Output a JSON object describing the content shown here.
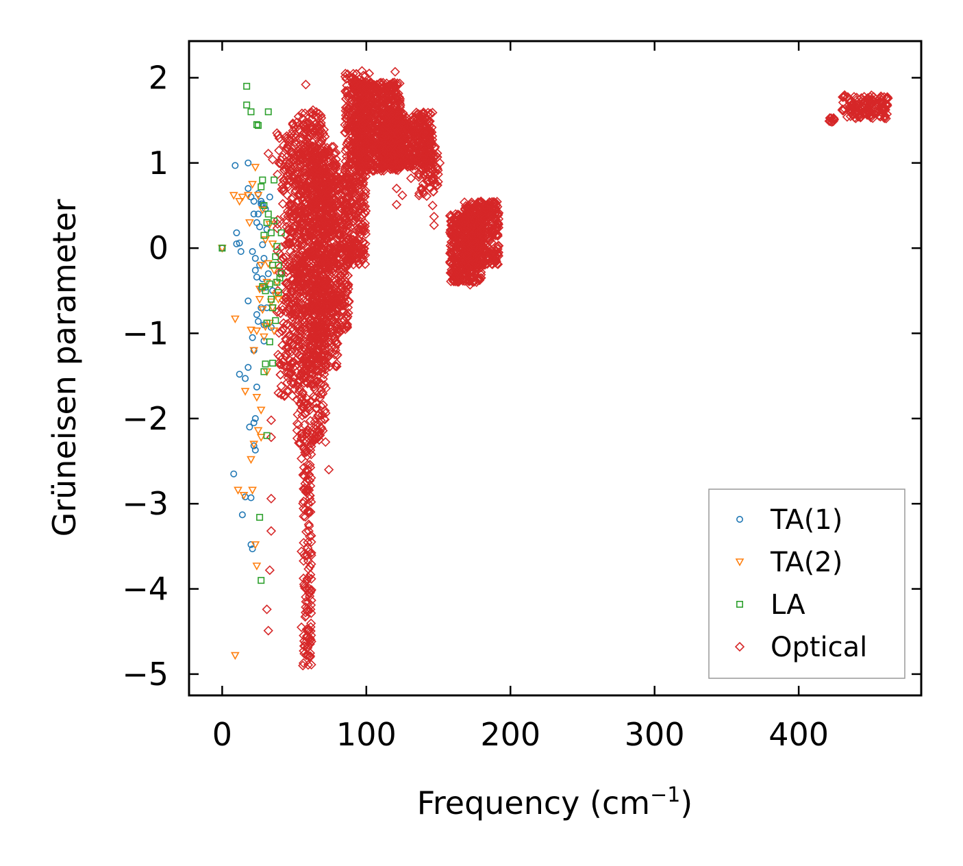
{
  "chart_data": {
    "type": "scatter",
    "title": "",
    "xlabel": "Frequency (cm",
    "xlabel_sup": "−1",
    "xlabel_suffix": ")",
    "ylabel": "Grüneisen parameter",
    "xlim": [
      -23,
      485
    ],
    "ylim": [
      -5.25,
      2.43
    ],
    "x_ticks": [
      0,
      100,
      200,
      300,
      400
    ],
    "x_tick_labels": [
      "0",
      "100",
      "200",
      "300",
      "400"
    ],
    "y_ticks": [
      -5,
      -4,
      -3,
      -2,
      -1,
      0,
      1,
      2
    ],
    "y_tick_labels": [
      "−5",
      "−4",
      "−3",
      "−2",
      "−1",
      "0",
      "1",
      "2"
    ],
    "grid": false,
    "legend_position": "lower-right",
    "series": [
      {
        "name": "TA(1)",
        "marker": "circle",
        "color": "#1f77b4",
        "points": [
          [
            0,
            0
          ],
          [
            8,
            -2.65
          ],
          [
            9,
            0.97
          ],
          [
            10,
            0.18
          ],
          [
            10,
            0.05
          ],
          [
            12,
            -1.48
          ],
          [
            12,
            0.06
          ],
          [
            13,
            -0.04
          ],
          [
            14,
            -3.13
          ],
          [
            16,
            -1.53
          ],
          [
            16,
            -2.92
          ],
          [
            18,
            -0.62
          ],
          [
            18,
            -1.4
          ],
          [
            18,
            0.7
          ],
          [
            18,
            1.0
          ],
          [
            19,
            -2.1
          ],
          [
            20,
            -2.93
          ],
          [
            20,
            -3.48
          ],
          [
            20,
            0.6
          ],
          [
            21,
            -3.53
          ],
          [
            21,
            -1.05
          ],
          [
            21,
            -0.04
          ],
          [
            22,
            -2.05
          ],
          [
            22,
            -2.32
          ],
          [
            22,
            -1.2
          ],
          [
            22,
            0.4
          ],
          [
            22,
            0.55
          ],
          [
            23,
            -2.0
          ],
          [
            23,
            -2.37
          ],
          [
            23,
            -0.12
          ],
          [
            23,
            -0.26
          ],
          [
            24,
            -1.63
          ],
          [
            24,
            -0.78
          ],
          [
            24,
            -0.34
          ],
          [
            24,
            0.3
          ],
          [
            25,
            -0.86
          ],
          [
            25,
            0.64
          ],
          [
            25,
            0.4
          ],
          [
            26,
            -0.2
          ],
          [
            26,
            0.25
          ],
          [
            27,
            -0.47
          ],
          [
            27,
            -0.7
          ],
          [
            27,
            0.52
          ],
          [
            27,
            0.55
          ],
          [
            28,
            -0.36
          ],
          [
            28,
            0.04
          ],
          [
            28,
            0.52
          ],
          [
            29,
            -1.09
          ],
          [
            29,
            -0.9
          ],
          [
            29,
            -0.12
          ],
          [
            30,
            0.46
          ],
          [
            30,
            -0.46
          ],
          [
            31,
            -0.7
          ],
          [
            31,
            0.22
          ],
          [
            32,
            -0.3
          ],
          [
            33,
            0.6
          ],
          [
            34,
            -0.93
          ],
          [
            35,
            -0.5
          ]
        ]
      },
      {
        "name": "TA(2)",
        "marker": "triangle-down",
        "color": "#ff7f0e",
        "points": [
          [
            0,
            0
          ],
          [
            8,
            0.62
          ],
          [
            9,
            -0.83
          ],
          [
            9,
            -4.78
          ],
          [
            11,
            -2.84
          ],
          [
            12,
            0.55
          ],
          [
            14,
            0.6
          ],
          [
            15,
            -2.9
          ],
          [
            16,
            -1.68
          ],
          [
            18,
            0.62
          ],
          [
            19,
            0.3
          ],
          [
            20,
            -2.48
          ],
          [
            20,
            -0.96
          ],
          [
            21,
            -2.84
          ],
          [
            21,
            0.75
          ],
          [
            22,
            -1.2
          ],
          [
            22,
            -2.3
          ],
          [
            23,
            -3.48
          ],
          [
            23,
            0.95
          ],
          [
            24,
            -3.73
          ],
          [
            24,
            -0.97
          ],
          [
            24,
            -1.75
          ],
          [
            25,
            -2.14
          ],
          [
            25,
            0.62
          ],
          [
            26,
            -0.6
          ],
          [
            26,
            -0.48
          ],
          [
            27,
            -1.9
          ],
          [
            27,
            -2.22
          ],
          [
            27,
            -0.2
          ],
          [
            28,
            -0.72
          ],
          [
            28,
            0.45
          ],
          [
            29,
            -1.04
          ],
          [
            29,
            -0.46
          ],
          [
            30,
            -0.92
          ],
          [
            30,
            0.1
          ],
          [
            31,
            -1.45
          ],
          [
            31,
            -0.4
          ],
          [
            32,
            -0.18
          ],
          [
            33,
            -0.88
          ],
          [
            33,
            0.28
          ],
          [
            34,
            -0.63
          ],
          [
            35,
            -0.7
          ],
          [
            35,
            0.05
          ],
          [
            36,
            -0.97
          ],
          [
            36,
            -0.26
          ],
          [
            37,
            -0.55
          ],
          [
            38,
            -0.4
          ],
          [
            39,
            -0.6
          ]
        ]
      },
      {
        "name": "LA",
        "marker": "square",
        "color": "#2ca02c",
        "points": [
          [
            0,
            0
          ],
          [
            17,
            1.9
          ],
          [
            17,
            1.68
          ],
          [
            20,
            1.6
          ],
          [
            24,
            1.45
          ],
          [
            25,
            1.44
          ],
          [
            26,
            -3.16
          ],
          [
            27,
            -3.9
          ],
          [
            27,
            0.72
          ],
          [
            28,
            0.8
          ],
          [
            28,
            -0.45
          ],
          [
            29,
            0.5
          ],
          [
            29,
            0.15
          ],
          [
            29,
            -1.45
          ],
          [
            30,
            -0.5
          ],
          [
            30,
            -1.36
          ],
          [
            31,
            -2.2
          ],
          [
            31,
            0.3
          ],
          [
            31,
            -0.88
          ],
          [
            32,
            1.6
          ],
          [
            32,
            0.4
          ],
          [
            33,
            -1.1
          ],
          [
            33,
            -0.42
          ],
          [
            34,
            -0.6
          ],
          [
            34,
            0.18
          ],
          [
            35,
            -0.2
          ],
          [
            35,
            -1.35
          ],
          [
            35,
            -0.7
          ],
          [
            36,
            0.8
          ],
          [
            36,
            0.32
          ],
          [
            37,
            -0.1
          ],
          [
            37,
            -0.85
          ],
          [
            38,
            0.02
          ],
          [
            38,
            -0.4
          ],
          [
            39,
            -0.2
          ],
          [
            39,
            -0.52
          ],
          [
            40,
            -0.35
          ],
          [
            41,
            0.18
          ],
          [
            41,
            -0.3
          ]
        ]
      },
      {
        "name": "Optical",
        "marker": "diamond",
        "color": "#d62728",
        "generated_clusters": [
          {
            "x": [
              38,
              54
            ],
            "y": [
              -1.75,
              1.35
            ],
            "n": 180
          },
          {
            "x": [
              44,
              68
            ],
            "y": [
              -1.6,
              1.55
            ],
            "n": 420
          },
          {
            "x": [
              52,
              72
            ],
            "y": [
              -2.3,
              1.6
            ],
            "n": 520
          },
          {
            "x": [
              56,
              62
            ],
            "y": [
              -4.9,
              -2.3
            ],
            "n": 140
          },
          {
            "x": [
              60,
              80
            ],
            "y": [
              -1.4,
              1.2
            ],
            "n": 480
          },
          {
            "x": [
              70,
              88
            ],
            "y": [
              -1.0,
              0.85
            ],
            "n": 360
          },
          {
            "x": [
              85,
              100
            ],
            "y": [
              -0.2,
              2.05
            ],
            "n": 420
          },
          {
            "x": [
              92,
              124
            ],
            "y": [
              0.9,
              1.95
            ],
            "n": 700
          },
          {
            "x": [
              110,
              146
            ],
            "y": [
              0.95,
              1.6
            ],
            "n": 520
          },
          {
            "x": [
              136,
              150
            ],
            "y": [
              0.6,
              1.2
            ],
            "n": 80
          },
          {
            "x": [
              158,
              180
            ],
            "y": [
              -0.4,
              0.4
            ],
            "n": 420
          },
          {
            "x": [
              168,
              192
            ],
            "y": [
              -0.2,
              0.55
            ],
            "n": 380
          },
          {
            "x": [
              421,
              425
            ],
            "y": [
              1.48,
              1.53
            ],
            "n": 10
          },
          {
            "x": [
              430,
              462
            ],
            "y": [
              1.52,
              1.8
            ],
            "n": 150
          }
        ],
        "points": [
          [
            34,
            -2.02
          ],
          [
            34,
            -2.22
          ],
          [
            34,
            -2.94
          ],
          [
            34,
            -3.32
          ],
          [
            33,
            -3.78
          ],
          [
            31,
            -4.24
          ],
          [
            32,
            -4.49
          ],
          [
            32,
            1.11
          ],
          [
            35,
            1.04
          ],
          [
            38,
            1.35
          ],
          [
            39,
            -1.7
          ],
          [
            41,
            -1.72
          ],
          [
            46,
            -1.68
          ],
          [
            52,
            -2.14
          ],
          [
            55,
            -2.47
          ],
          [
            55,
            -3.56
          ],
          [
            55,
            -4.45
          ],
          [
            56,
            -4.9
          ],
          [
            57,
            -4.76
          ],
          [
            59,
            -4.23
          ],
          [
            58,
            1.92
          ],
          [
            63,
            1.62
          ],
          [
            60,
            1.48
          ],
          [
            74,
            -2.6
          ],
          [
            80,
            -1.12
          ],
          [
            85,
            -0.63
          ],
          [
            93,
            1.88
          ],
          [
            97,
            2.08
          ],
          [
            102,
            2.05
          ],
          [
            107,
            1.75
          ],
          [
            115,
            1.6
          ],
          [
            120,
            2.07
          ],
          [
            120,
            1.88
          ],
          [
            121,
            0.7
          ],
          [
            121,
            0.51
          ],
          [
            125,
            0.62
          ],
          [
            131,
            0.82
          ],
          [
            133,
            0.92
          ],
          [
            135,
            1.07
          ],
          [
            140,
            1.35
          ],
          [
            143,
            1.55
          ],
          [
            146,
            0.5
          ],
          [
            147,
            0.37
          ],
          [
            147,
            0.27
          ],
          [
            151,
            1.0
          ],
          [
            175,
            -0.38
          ],
          [
            172,
            -0.43
          ],
          [
            190,
            0.5
          ],
          [
            182,
            0.35
          ]
        ]
      }
    ]
  }
}
